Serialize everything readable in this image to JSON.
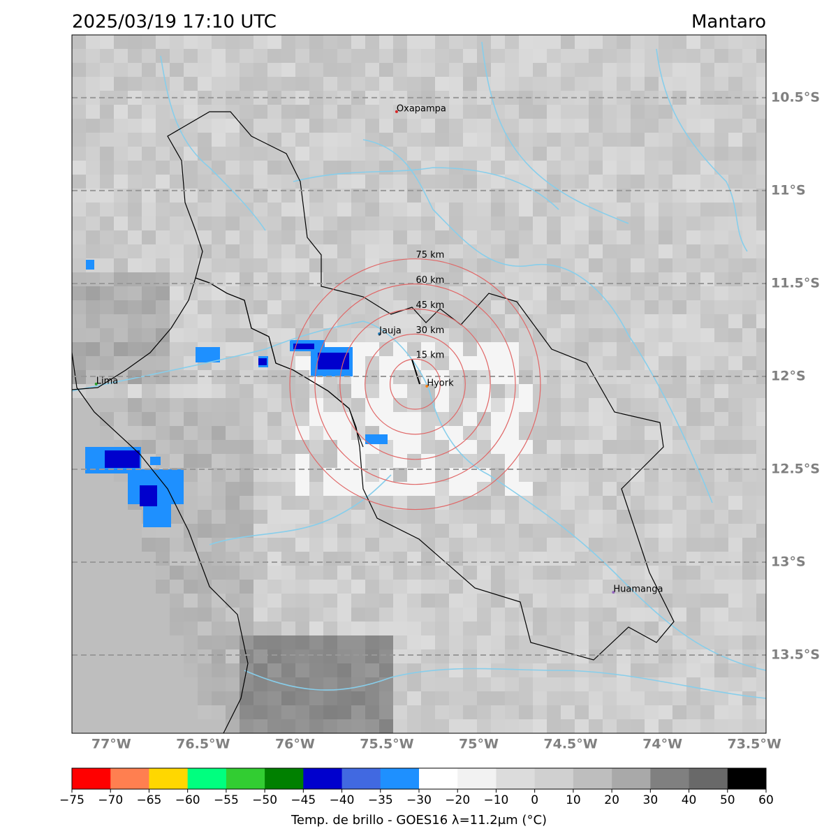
{
  "title": "2025/03/19 17:10 UTC",
  "region": "Mantaro",
  "map": {
    "xlim": [
      -77.214,
      -73.436
    ],
    "ylim": [
      -13.921,
      -10.162
    ],
    "grid": true,
    "xticks": [
      {
        "value": -77,
        "label": "77°W"
      },
      {
        "value": -76.5,
        "label": "76.5°W"
      },
      {
        "value": -76,
        "label": "76°W"
      },
      {
        "value": -75.5,
        "label": "75.5°W"
      },
      {
        "value": -75,
        "label": "75°W"
      },
      {
        "value": -74.5,
        "label": "74.5°W"
      },
      {
        "value": -74,
        "label": "74°W"
      },
      {
        "value": -73.5,
        "label": "73.5°W"
      }
    ],
    "yticks": [
      {
        "value": -10.5,
        "label": "10.5°S"
      },
      {
        "value": -11,
        "label": "11°S"
      },
      {
        "value": -11.5,
        "label": "11.5°S"
      },
      {
        "value": -12,
        "label": "12°S"
      },
      {
        "value": -12.5,
        "label": "12.5°S"
      },
      {
        "value": -13,
        "label": "13°S"
      },
      {
        "value": -13.5,
        "label": "13.5°S"
      }
    ]
  },
  "cities": [
    {
      "name": "Oxapampa",
      "lon": -75.447,
      "lat": -10.575,
      "color": "#d62728"
    },
    {
      "name": "Jauja",
      "lon": -75.541,
      "lat": -11.771,
      "color": "#1f77b4"
    },
    {
      "name": "Hyork",
      "lon": -75.282,
      "lat": -12.053,
      "color": "#ff7f0e"
    },
    {
      "name": "Lima",
      "lon": -77.082,
      "lat": -12.041,
      "color": "#2ca02c"
    },
    {
      "name": "Huamanga",
      "lon": -74.267,
      "lat": -13.162,
      "color": "#9467bd"
    }
  ],
  "radar": {
    "lon": -75.346,
    "lat": -12.042,
    "color": "#e06666",
    "rings": [
      {
        "value": 15,
        "label": "15 km"
      },
      {
        "value": 30,
        "label": "30 km"
      },
      {
        "value": 45,
        "label": "45 km"
      },
      {
        "value": 60,
        "label": "60 km"
      },
      {
        "value": 75,
        "label": "75 km"
      }
    ]
  },
  "colorbar": {
    "label": "Temp. de brillo - GOES16 λ=11.2μm (°C)",
    "ticks": [
      {
        "value": -75,
        "label": "−75"
      },
      {
        "value": -70,
        "label": "−70"
      },
      {
        "value": -65,
        "label": "−65"
      },
      {
        "value": -60,
        "label": "−60"
      },
      {
        "value": -55,
        "label": "−55"
      },
      {
        "value": -50,
        "label": "−50"
      },
      {
        "value": -45,
        "label": "−45"
      },
      {
        "value": -40,
        "label": "−40"
      },
      {
        "value": -35,
        "label": "−35"
      },
      {
        "value": -30,
        "label": "−30"
      },
      {
        "value": -20,
        "label": "−20"
      },
      {
        "value": -10,
        "label": "−10"
      },
      0,
      10,
      20,
      30,
      40,
      50,
      60
    ],
    "colors": [
      "#ff0000",
      "#ff7f50",
      "#ffd700",
      "#00ff7f",
      "#32cd32",
      "#008000",
      "#0000cd",
      "#4169e1",
      "#1e90ff",
      "#ffffff",
      "#f2f2f2",
      "#dcdcdc",
      "#d0d0d0",
      "#bebebe",
      "#a9a9a9",
      "#808080",
      "#696969",
      "#000000"
    ]
  }
}
